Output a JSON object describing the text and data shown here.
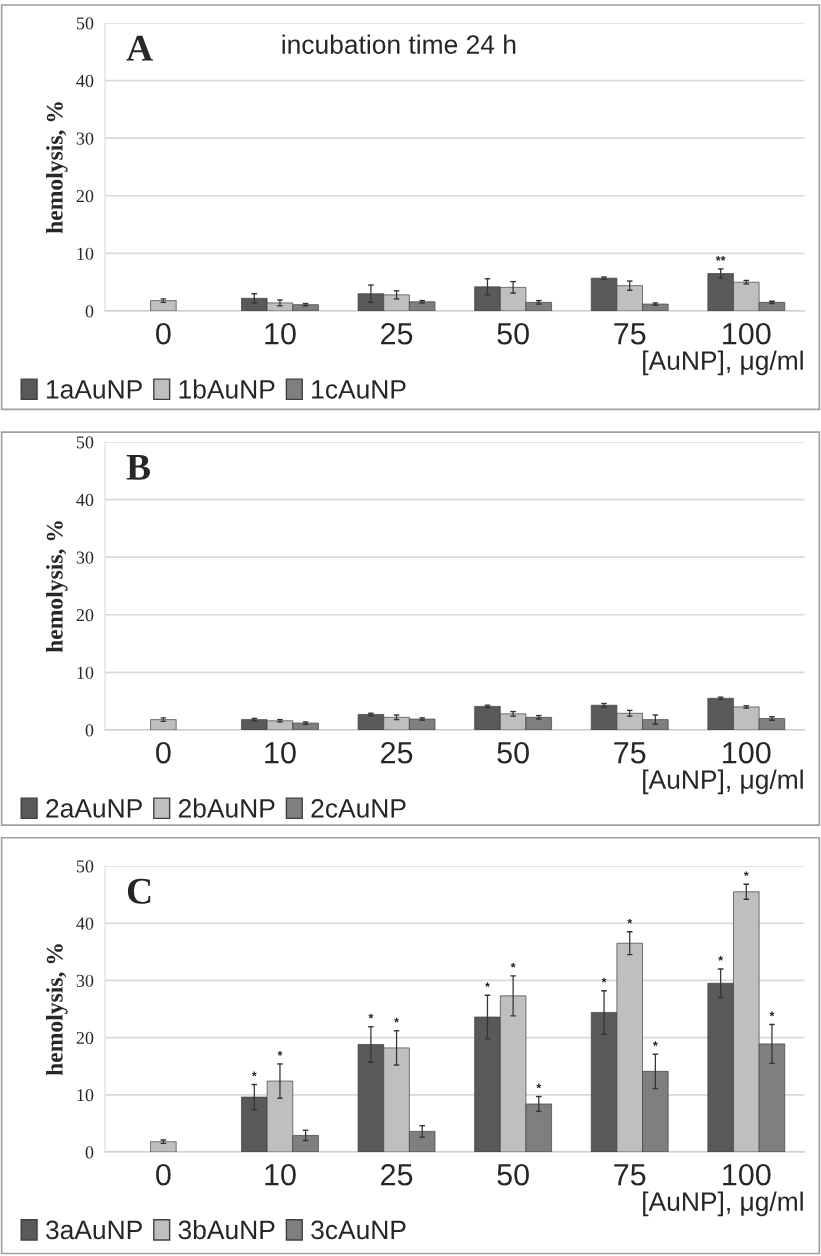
{
  "chart_data": [
    {
      "type": "bar",
      "title": "A",
      "annotations": [
        "incubation time 24 h"
      ],
      "xlabel": "[AuNP], μg/ml",
      "ylabel": "hemolysis, %",
      "categories": [
        "0",
        "10",
        "25",
        "50",
        "75",
        "100"
      ],
      "ylim": [
        0,
        50
      ],
      "yticks": [
        0,
        10,
        20,
        30,
        40,
        50
      ],
      "grid": "y",
      "legend": "bottom left",
      "series": [
        {
          "name": "1aAuNP",
          "color": "#595959",
          "values": [
            null,
            2.2,
            3.0,
            4.2,
            5.7,
            6.5
          ],
          "errors": [
            null,
            0.8,
            1.5,
            1.4,
            0.2,
            0.8
          ],
          "value_labels": [
            null,
            null,
            null,
            null,
            null,
            "**"
          ]
        },
        {
          "name": "1bAuNP",
          "color": "#bfbfbf",
          "values": [
            1.8,
            1.4,
            2.8,
            4.1,
            4.4,
            5.0
          ],
          "errors": [
            0.3,
            0.5,
            0.7,
            1.0,
            0.8,
            0.3
          ]
        },
        {
          "name": "1cAuNP",
          "color": "#7f7f7f",
          "values": [
            null,
            1.1,
            1.6,
            1.5,
            1.2,
            1.5
          ],
          "errors": [
            null,
            0.2,
            0.2,
            0.3,
            0.2,
            0.2
          ]
        }
      ]
    },
    {
      "type": "bar",
      "title": "B",
      "xlabel": "[AuNP], μg/ml",
      "ylabel": "hemolysis, %",
      "categories": [
        "0",
        "10",
        "25",
        "50",
        "75",
        "100"
      ],
      "ylim": [
        0,
        50
      ],
      "yticks": [
        0,
        10,
        20,
        30,
        40,
        50
      ],
      "grid": "y",
      "legend": "bottom left",
      "series": [
        {
          "name": "2aAuNP",
          "color": "#595959",
          "values": [
            null,
            1.8,
            2.7,
            4.1,
            4.3,
            5.5
          ],
          "errors": [
            null,
            0.2,
            0.2,
            0.2,
            0.3,
            0.2
          ]
        },
        {
          "name": "2bAuNP",
          "color": "#bfbfbf",
          "values": [
            1.8,
            1.6,
            2.2,
            2.8,
            2.9,
            4.0
          ],
          "errors": [
            0.3,
            0.2,
            0.4,
            0.4,
            0.5,
            0.2
          ]
        },
        {
          "name": "2cAuNP",
          "color": "#7f7f7f",
          "values": [
            null,
            1.2,
            1.9,
            2.2,
            1.8,
            2.0
          ],
          "errors": [
            null,
            0.2,
            0.2,
            0.3,
            0.8,
            0.3
          ]
        }
      ]
    },
    {
      "type": "bar",
      "title": "C",
      "xlabel": "[AuNP], μg/ml",
      "ylabel": "hemolysis, %",
      "categories": [
        "0",
        "10",
        "25",
        "50",
        "75",
        "100"
      ],
      "ylim": [
        0,
        50
      ],
      "yticks": [
        0,
        10,
        20,
        30,
        40,
        50
      ],
      "grid": "y",
      "legend": "bottom left",
      "series": [
        {
          "name": "3aAuNP",
          "color": "#595959",
          "values": [
            null,
            9.6,
            18.8,
            23.6,
            24.4,
            29.5
          ],
          "errors": [
            null,
            2.2,
            3.1,
            3.8,
            3.8,
            2.5
          ],
          "value_labels": [
            null,
            "*",
            "*",
            "*",
            "*",
            "*"
          ]
        },
        {
          "name": "3bAuNP",
          "color": "#bfbfbf",
          "values": [
            1.8,
            12.4,
            18.2,
            27.3,
            36.5,
            45.5
          ],
          "errors": [
            0.3,
            3.0,
            3.0,
            3.5,
            2.0,
            1.3
          ],
          "value_labels": [
            null,
            "*",
            "*",
            "*",
            "*",
            "*"
          ]
        },
        {
          "name": "3cAuNP",
          "color": "#7f7f7f",
          "values": [
            null,
            2.9,
            3.6,
            8.4,
            14.1,
            18.9
          ],
          "errors": [
            null,
            0.9,
            1.0,
            1.3,
            3.0,
            3.4
          ],
          "value_labels": [
            null,
            null,
            null,
            "*",
            "*",
            "*"
          ]
        }
      ]
    }
  ]
}
